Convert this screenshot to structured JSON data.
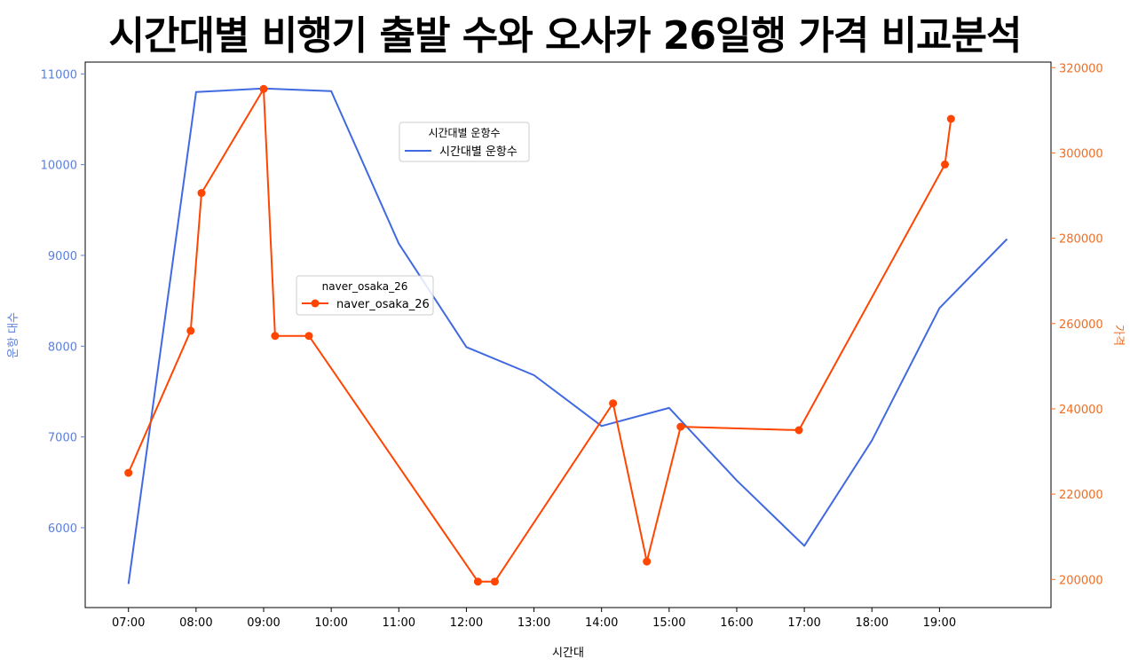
{
  "chart_data": {
    "type": "line",
    "title": "시간대별 비행기 출발 수와 오사카 26일행 가격 비교분석",
    "xlabel": "시간대",
    "ylabel_left": "운항 대수",
    "ylabel_right": "가격",
    "x_ticks": [
      "07:00",
      "08:00",
      "09:00",
      "10:00",
      "11:00",
      "12:00",
      "13:00",
      "14:00",
      "15:00",
      "16:00",
      "17:00",
      "18:00",
      "19:00"
    ],
    "xlim_hours": [
      6.36,
      20.65
    ],
    "y_left": {
      "ticks": [
        6000,
        7000,
        8000,
        9000,
        10000,
        11000
      ],
      "ylim": [
        5120,
        11130
      ],
      "color": "#5b7fe0"
    },
    "y_right": {
      "ticks": [
        200000,
        220000,
        240000,
        260000,
        280000,
        300000,
        320000
      ],
      "ylim": [
        193400,
        321300
      ],
      "color": "#f26d21"
    },
    "series": [
      {
        "name": "시간대별 운항수",
        "axis": "left",
        "color": "#4169e1",
        "markers": false,
        "x_hours": [
          7,
          8,
          9,
          10,
          11,
          12,
          13,
          14,
          15,
          16,
          17,
          18,
          19,
          20
        ],
        "values": [
          5380,
          10800,
          10840,
          10810,
          9130,
          7990,
          7680,
          7120,
          7320,
          6520,
          5800,
          6960,
          8420,
          9180
        ]
      },
      {
        "name": "naver_osaka_26",
        "axis": "right",
        "color": "#ff4500",
        "markers": true,
        "x_hours": [
          7.0,
          7.92,
          8.08,
          9.0,
          9.17,
          9.67,
          12.17,
          12.42,
          14.17,
          14.67,
          15.17,
          16.92,
          19.08,
          19.17
        ],
        "values": [
          225000,
          258300,
          290600,
          315000,
          257100,
          257100,
          199500,
          199500,
          241300,
          204200,
          235800,
          235000,
          297300,
          308000
        ]
      }
    ],
    "legends": [
      {
        "title": "시간대별 운항수",
        "entry": "시간대별 운항수",
        "series": 0
      },
      {
        "title": "naver_osaka_26",
        "entry": "naver_osaka_26",
        "series": 1
      }
    ]
  }
}
